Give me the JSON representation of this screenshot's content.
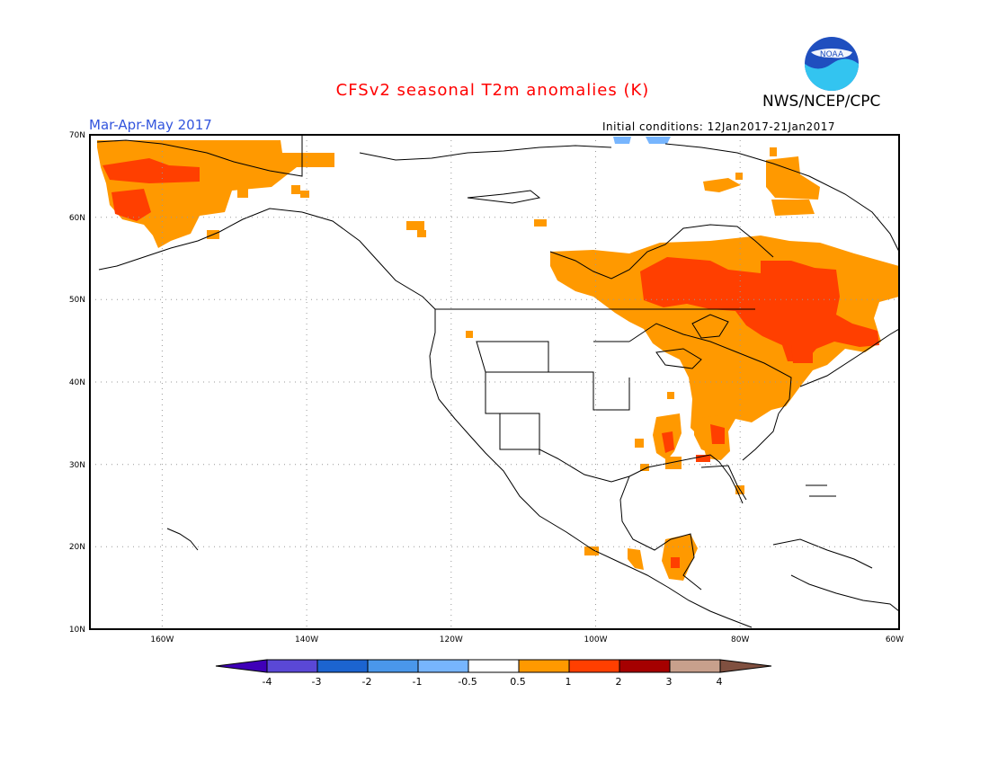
{
  "header": {
    "title": "CFSv2 seasonal T2m anomalies (K)",
    "title_color": "#ff0000",
    "org": "NWS/NCEP/CPC",
    "season": "Mar-Apr-May 2017",
    "season_color": "#3355dd",
    "initial_conditions": "Initial conditions: 12Jan2017-21Jan2017",
    "logo_text": "NOAA"
  },
  "map": {
    "lon_range": [
      -172,
      -60
    ],
    "lat_range": [
      10,
      70
    ],
    "lat_labels": [
      "70N",
      "60N",
      "50N",
      "40N",
      "30N",
      "20N",
      "10N"
    ],
    "lon_labels": [
      "160W",
      "140W",
      "120W",
      "100W",
      "80W",
      "60W"
    ],
    "grid": "dotted",
    "anomaly_fields": [
      {
        "id": "alaska-warm",
        "category": "0.5-1",
        "color": "#ff9900"
      },
      {
        "id": "alaska-hot",
        "category": "1-2",
        "color": "#ff3f00"
      },
      {
        "id": "canada-east-warm",
        "category": "0.5-1",
        "color": "#ff9900"
      },
      {
        "id": "canada-east-hot",
        "category": "1-2",
        "color": "#ff3f00"
      },
      {
        "id": "us-southeast-warm",
        "category": "0.5-1",
        "color": "#ff9900"
      },
      {
        "id": "arctic-cold",
        "category": "-1 - -0.5",
        "color": "#77b5fe"
      },
      {
        "id": "mexico-warm",
        "category": "0.5-1",
        "color": "#ff9900"
      }
    ]
  },
  "colorbar": {
    "labels": [
      "-4",
      "-3",
      "-2",
      "-1",
      "-0.5",
      "0.5",
      "1",
      "2",
      "3",
      "4"
    ],
    "colors": [
      "#3f00b8",
      "#5a48d6",
      "#1c64d0",
      "#4a97ea",
      "#77b5fe",
      "#ffffff",
      "#ff9900",
      "#ff3f00",
      "#a50000",
      "#c8a08c",
      "#805040"
    ]
  }
}
